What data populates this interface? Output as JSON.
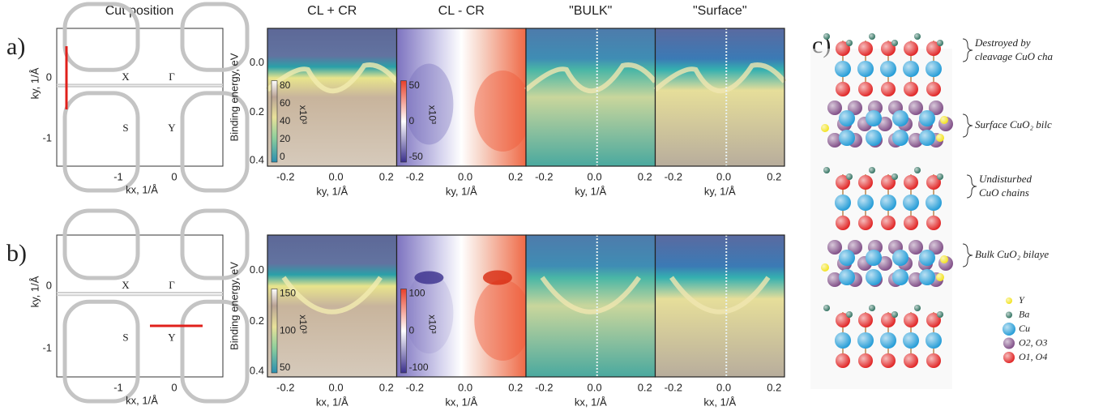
{
  "panels": [
    {
      "label": "a)",
      "fermi_map": {
        "title": "Cut position",
        "xlabel": "kx, 1/Å",
        "ylabel": "ky, 1/Å",
        "xticks": [
          "-1",
          "0"
        ],
        "yticks": [
          "0",
          "-1"
        ],
        "points": [
          "X",
          "Γ",
          "S",
          "Y"
        ]
      },
      "spectra": {
        "ylabel": "Binding energy, eV",
        "yticks": [
          "0.0",
          "0.2",
          "0.4"
        ],
        "plots": [
          {
            "title": "CL + CR",
            "xlabel": "ky, 1/Å",
            "xticks": [
              "-0.2",
              "0.0",
              "0.2"
            ],
            "colorbar": {
              "label": "x10³",
              "ticks": [
                "80",
                "60",
                "40",
                "20",
                "0"
              ]
            }
          },
          {
            "title": "CL - CR",
            "xlabel": "ky, 1/Å",
            "xticks": [
              "-0.2",
              "0.0",
              "0.2"
            ],
            "colorbar": {
              "label": "x10³",
              "ticks": [
                "50",
                "0",
                "-50"
              ]
            }
          },
          {
            "title": "\"BULK\"",
            "xlabel": "ky, 1/Å",
            "xticks": [
              "-0.2",
              "0.0",
              "0.2"
            ]
          },
          {
            "title": "\"Surface\"",
            "xlabel": "ky, 1/Å",
            "xticks": [
              "-0.2",
              "0.0",
              "0.2"
            ]
          }
        ]
      }
    },
    {
      "label": "b)",
      "fermi_map": {
        "xlabel": "kx, 1/Å",
        "ylabel": "ky, 1/Å",
        "xticks": [
          "-1",
          "0"
        ],
        "yticks": [
          "0",
          "-1"
        ],
        "points": [
          "X",
          "Γ",
          "S",
          "Y"
        ]
      },
      "spectra": {
        "ylabel": "Binding energy, eV",
        "yticks": [
          "0.0",
          "0.2",
          "0.4"
        ],
        "plots": [
          {
            "xlabel": "kx, 1/Å",
            "xticks": [
              "-0.2",
              "0.0",
              "0.2"
            ],
            "colorbar": {
              "label": "x10³",
              "ticks": [
                "150",
                "100",
                "50"
              ]
            }
          },
          {
            "xlabel": "kx, 1/Å",
            "xticks": [
              "-0.2",
              "0.0",
              "0.2"
            ],
            "colorbar": {
              "label": "x10³",
              "ticks": [
                "100",
                "0",
                "-100"
              ]
            }
          },
          {
            "xlabel": "kx, 1/Å",
            "xticks": [
              "-0.2",
              "0.0",
              "0.2"
            ]
          },
          {
            "xlabel": "kx, 1/Å",
            "xticks": [
              "-0.2",
              "0.0",
              "0.2"
            ]
          }
        ]
      }
    }
  ],
  "structure": {
    "label": "c)",
    "annotations": [
      [
        "Destroyed by",
        "cleavage CuO cha"
      ],
      [
        "Surface CuO₂ bilc"
      ],
      [
        "Undisturbed",
        "CuO chains"
      ],
      [
        "Bulk CuO₂ bilaye"
      ]
    ],
    "legend": [
      "Y",
      "Ba",
      "Cu",
      "O2, O3",
      "O1, O4"
    ]
  }
}
